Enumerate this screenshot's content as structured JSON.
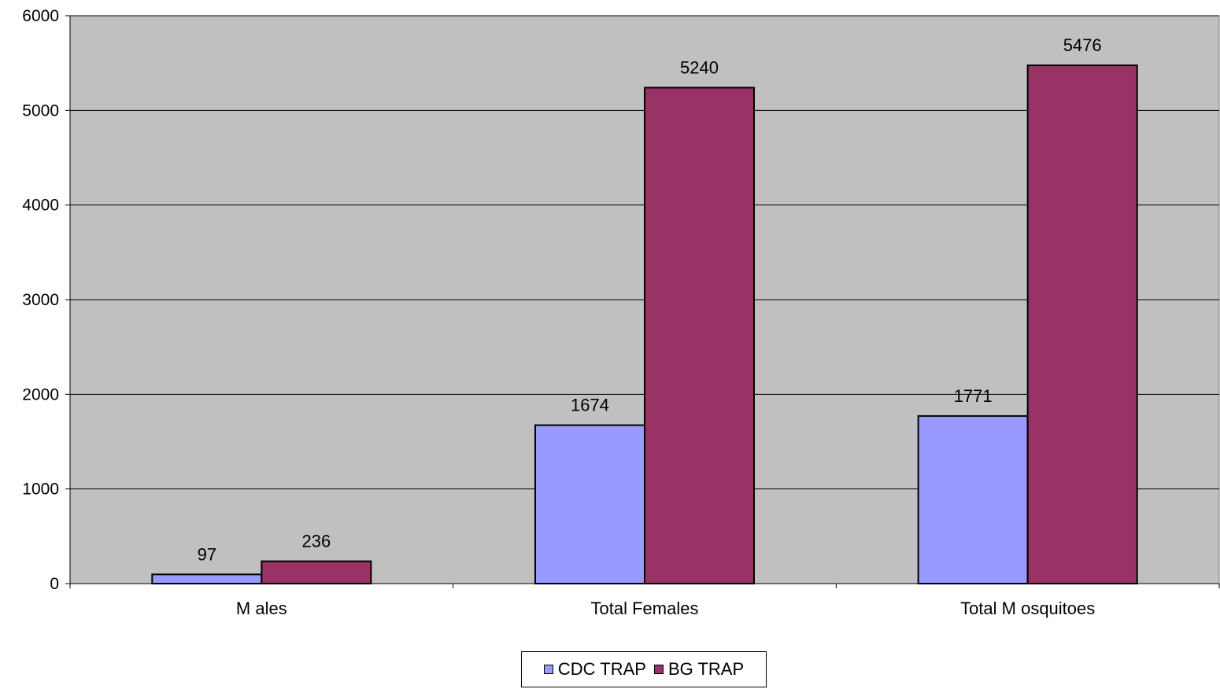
{
  "chart_data": {
    "type": "bar",
    "title": "",
    "xlabel": "",
    "ylabel": "",
    "categories": [
      "M ales",
      "Total Females",
      "Total M osquitoes"
    ],
    "series": [
      {
        "name": "CDC TRAP",
        "values": [
          97,
          1674,
          1771
        ],
        "color": "#9999FF"
      },
      {
        "name": "BG TRAP",
        "values": [
          236,
          5240,
          5476
        ],
        "color": "#993366"
      }
    ],
    "ylim": [
      0,
      6000
    ],
    "yticks": [
      0,
      1000,
      2000,
      3000,
      4000,
      5000,
      6000
    ],
    "grid": true,
    "plot_background": "#C0C0C0",
    "legend_position": "bottom"
  }
}
